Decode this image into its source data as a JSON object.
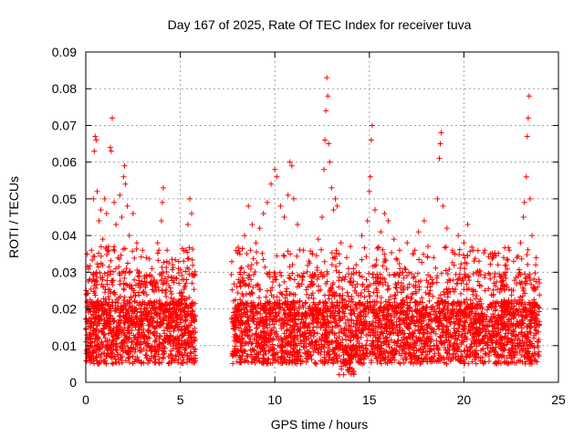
{
  "chart_data": {
    "type": "scatter",
    "title": "Day 167 of 2025, Rate Of TEC Index for receiver tuva",
    "xlabel": "GPS time / hours",
    "ylabel": "ROTI / TECUs",
    "xlim": [
      0,
      25
    ],
    "ylim": [
      0,
      0.09
    ],
    "x_ticks": [
      "0",
      "5",
      "10",
      "15",
      "20",
      "25"
    ],
    "y_ticks": [
      "0",
      "0.01",
      "0.02",
      "0.03",
      "0.04",
      "0.05",
      "0.06",
      "0.07",
      "0.08",
      "0.09"
    ],
    "x_tick_values": [
      0,
      5,
      10,
      15,
      20,
      25
    ],
    "y_tick_values": [
      0,
      0.01,
      0.02,
      0.03,
      0.04,
      0.05,
      0.06,
      0.07,
      0.08,
      0.09
    ],
    "grid": true,
    "marker": "+",
    "color": "#ff0000",
    "data_gap_hours": [
      5.8,
      7.7
    ],
    "series": [
      {
        "points": [
          [
            0.1,
            0.012
          ],
          [
            0.2,
            0.028
          ],
          [
            0.3,
            0.036
          ],
          [
            0.4,
            0.05
          ],
          [
            0.45,
            0.063
          ],
          [
            0.5,
            0.067
          ],
          [
            0.55,
            0.066
          ],
          [
            0.6,
            0.052
          ],
          [
            0.7,
            0.044
          ],
          [
            0.8,
            0.047
          ],
          [
            0.9,
            0.039
          ],
          [
            1.0,
            0.05
          ],
          [
            1.1,
            0.046
          ],
          [
            1.2,
            0.037
          ],
          [
            1.3,
            0.064
          ],
          [
            1.35,
            0.063
          ],
          [
            1.4,
            0.072
          ],
          [
            1.5,
            0.049
          ],
          [
            1.6,
            0.043
          ],
          [
            1.7,
            0.034
          ],
          [
            1.8,
            0.051
          ],
          [
            1.9,
            0.045
          ],
          [
            2.0,
            0.056
          ],
          [
            2.05,
            0.059
          ],
          [
            2.1,
            0.054
          ],
          [
            2.2,
            0.048
          ],
          [
            2.3,
            0.04
          ],
          [
            2.5,
            0.046
          ],
          [
            2.7,
            0.038
          ],
          [
            3.0,
            0.036
          ],
          [
            3.2,
            0.034
          ],
          [
            3.5,
            0.031
          ],
          [
            3.8,
            0.038
          ],
          [
            4.0,
            0.044
          ],
          [
            4.05,
            0.049
          ],
          [
            4.1,
            0.053
          ],
          [
            4.3,
            0.036
          ],
          [
            4.6,
            0.032
          ],
          [
            4.9,
            0.031
          ],
          [
            5.1,
            0.028
          ],
          [
            5.3,
            0.036
          ],
          [
            5.4,
            0.043
          ],
          [
            5.5,
            0.05
          ],
          [
            5.6,
            0.046
          ],
          [
            5.7,
            0.029
          ],
          [
            7.9,
            0.02
          ],
          [
            8.2,
            0.031
          ],
          [
            8.4,
            0.04
          ],
          [
            8.6,
            0.048
          ],
          [
            8.8,
            0.043
          ],
          [
            9.0,
            0.038
          ],
          [
            9.2,
            0.042
          ],
          [
            9.4,
            0.046
          ],
          [
            9.6,
            0.049
          ],
          [
            9.8,
            0.054
          ],
          [
            10.0,
            0.058
          ],
          [
            10.1,
            0.056
          ],
          [
            10.3,
            0.048
          ],
          [
            10.5,
            0.045
          ],
          [
            10.7,
            0.051
          ],
          [
            10.8,
            0.06
          ],
          [
            10.9,
            0.059
          ],
          [
            11.0,
            0.05
          ],
          [
            11.2,
            0.043
          ],
          [
            11.5,
            0.036
          ],
          [
            11.8,
            0.033
          ],
          [
            12.0,
            0.035
          ],
          [
            12.3,
            0.039
          ],
          [
            12.5,
            0.045
          ],
          [
            12.6,
            0.058
          ],
          [
            12.65,
            0.066
          ],
          [
            12.7,
            0.074
          ],
          [
            12.75,
            0.083
          ],
          [
            12.8,
            0.078
          ],
          [
            12.85,
            0.065
          ],
          [
            12.9,
            0.06
          ],
          [
            13.0,
            0.053
          ],
          [
            13.1,
            0.047
          ],
          [
            13.2,
            0.05
          ],
          [
            13.3,
            0.048
          ],
          [
            13.5,
            0.038
          ],
          [
            13.8,
            0.034
          ],
          [
            14.0,
            0.037
          ],
          [
            14.3,
            0.032
          ],
          [
            14.6,
            0.04
          ],
          [
            14.9,
            0.044
          ],
          [
            15.0,
            0.052
          ],
          [
            15.05,
            0.056
          ],
          [
            15.1,
            0.066
          ],
          [
            15.15,
            0.07
          ],
          [
            15.3,
            0.047
          ],
          [
            15.6,
            0.041
          ],
          [
            15.8,
            0.046
          ],
          [
            16.0,
            0.044
          ],
          [
            16.3,
            0.039
          ],
          [
            16.6,
            0.036
          ],
          [
            17.0,
            0.038
          ],
          [
            17.3,
            0.035
          ],
          [
            17.6,
            0.041
          ],
          [
            17.9,
            0.044
          ],
          [
            18.1,
            0.037
          ],
          [
            18.4,
            0.034
          ],
          [
            18.6,
            0.05
          ],
          [
            18.7,
            0.061
          ],
          [
            18.75,
            0.065
          ],
          [
            18.8,
            0.068
          ],
          [
            18.9,
            0.048
          ],
          [
            19.1,
            0.042
          ],
          [
            19.4,
            0.036
          ],
          [
            19.7,
            0.04
          ],
          [
            20.0,
            0.038
          ],
          [
            20.2,
            0.043
          ],
          [
            20.5,
            0.036
          ],
          [
            20.8,
            0.033
          ],
          [
            21.1,
            0.036
          ],
          [
            21.4,
            0.035
          ],
          [
            21.8,
            0.032
          ],
          [
            22.1,
            0.034
          ],
          [
            22.4,
            0.036
          ],
          [
            22.8,
            0.034
          ],
          [
            23.0,
            0.038
          ],
          [
            23.15,
            0.045
          ],
          [
            23.2,
            0.049
          ],
          [
            23.3,
            0.056
          ],
          [
            23.35,
            0.067
          ],
          [
            23.4,
            0.072
          ],
          [
            23.45,
            0.078
          ],
          [
            23.5,
            0.05
          ],
          [
            23.6,
            0.04
          ],
          [
            23.8,
            0.032
          ],
          [
            23.9,
            0.026
          ]
        ]
      }
    ]
  }
}
